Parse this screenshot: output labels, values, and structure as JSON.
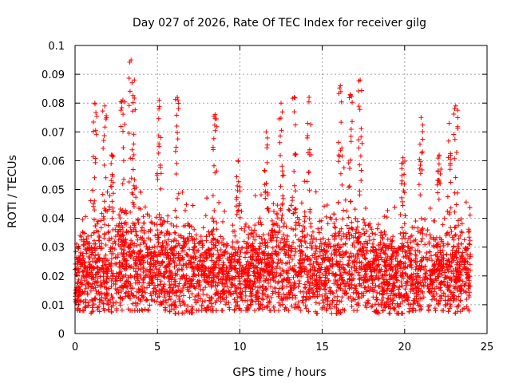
{
  "chart_data": {
    "type": "scatter",
    "title": "Day 027 of 2026, Rate Of TEC Index for receiver gilg",
    "xlabel": "GPS time / hours",
    "ylabel": "ROTI / TECUs",
    "xlim": [
      0,
      25
    ],
    "ylim": [
      0,
      0.1
    ],
    "xticks": [
      0,
      5,
      10,
      15,
      20,
      25
    ],
    "xtick_labels": [
      "0",
      "5",
      "10",
      "15",
      "20",
      "25"
    ],
    "yticks": [
      0,
      0.01,
      0.02,
      0.03,
      0.04,
      0.05,
      0.06,
      0.07,
      0.08,
      0.09,
      0.1
    ],
    "ytick_labels": [
      "0",
      "0.01",
      "0.02",
      "0.03",
      "0.04",
      "0.05",
      "0.06",
      "0.07",
      "0.08",
      "0.09",
      "0.1"
    ],
    "grid": true,
    "marker": "+",
    "color": "#ff0000",
    "envelope": {
      "x_hours": [
        0.0,
        0.5,
        1.0,
        1.5,
        2.0,
        2.5,
        3.0,
        3.5,
        4.0,
        4.5,
        5.0,
        5.5,
        6.0,
        6.5,
        7.0,
        7.5,
        8.0,
        8.5,
        9.0,
        9.5,
        10.0,
        10.5,
        11.0,
        11.5,
        12.0,
        12.5,
        13.0,
        13.5,
        14.0,
        14.5,
        15.0,
        15.5,
        16.0,
        16.5,
        17.0,
        17.5,
        18.0,
        18.5,
        19.0,
        19.5,
        20.0,
        20.5,
        21.0,
        21.5,
        22.0,
        22.5,
        23.0,
        23.5,
        24.0
      ],
      "median": [
        0.019,
        0.02,
        0.021,
        0.022,
        0.022,
        0.023,
        0.023,
        0.024,
        0.023,
        0.023,
        0.022,
        0.023,
        0.022,
        0.022,
        0.021,
        0.021,
        0.021,
        0.021,
        0.02,
        0.02,
        0.02,
        0.021,
        0.021,
        0.022,
        0.023,
        0.023,
        0.022,
        0.022,
        0.022,
        0.021,
        0.021,
        0.021,
        0.022,
        0.022,
        0.023,
        0.022,
        0.021,
        0.021,
        0.02,
        0.02,
        0.02,
        0.02,
        0.021,
        0.021,
        0.021,
        0.021,
        0.022,
        0.021,
        0.021
      ],
      "upper": [
        0.04,
        0.045,
        0.05,
        0.052,
        0.058,
        0.052,
        0.055,
        0.06,
        0.055,
        0.052,
        0.055,
        0.052,
        0.056,
        0.05,
        0.048,
        0.046,
        0.048,
        0.05,
        0.046,
        0.045,
        0.048,
        0.05,
        0.052,
        0.055,
        0.058,
        0.06,
        0.058,
        0.055,
        0.055,
        0.052,
        0.05,
        0.052,
        0.058,
        0.06,
        0.058,
        0.052,
        0.048,
        0.045,
        0.045,
        0.044,
        0.048,
        0.05,
        0.052,
        0.05,
        0.05,
        0.048,
        0.055,
        0.05,
        0.045
      ],
      "lower": [
        0.008,
        0.008,
        0.007,
        0.007,
        0.007,
        0.008,
        0.008,
        0.008,
        0.008,
        0.008,
        0.008,
        0.008,
        0.007,
        0.007,
        0.007,
        0.008,
        0.008,
        0.008,
        0.008,
        0.008,
        0.008,
        0.008,
        0.008,
        0.008,
        0.008,
        0.008,
        0.008,
        0.008,
        0.008,
        0.007,
        0.007,
        0.007,
        0.007,
        0.008,
        0.008,
        0.008,
        0.008,
        0.007,
        0.007,
        0.007,
        0.007,
        0.008,
        0.008,
        0.008,
        0.008,
        0.008,
        0.007,
        0.007,
        0.008
      ]
    },
    "peaks": [
      {
        "x": 1.2,
        "y": 0.08
      },
      {
        "x": 1.8,
        "y": 0.079
      },
      {
        "x": 2.2,
        "y": 0.062
      },
      {
        "x": 2.9,
        "y": 0.081
      },
      {
        "x": 3.4,
        "y": 0.095
      },
      {
        "x": 3.6,
        "y": 0.088
      },
      {
        "x": 5.1,
        "y": 0.081
      },
      {
        "x": 6.2,
        "y": 0.082
      },
      {
        "x": 8.5,
        "y": 0.076
      },
      {
        "x": 9.9,
        "y": 0.06
      },
      {
        "x": 11.6,
        "y": 0.07
      },
      {
        "x": 12.5,
        "y": 0.08
      },
      {
        "x": 13.3,
        "y": 0.082
      },
      {
        "x": 14.2,
        "y": 0.082
      },
      {
        "x": 16.1,
        "y": 0.086
      },
      {
        "x": 16.7,
        "y": 0.083
      },
      {
        "x": 17.3,
        "y": 0.088
      },
      {
        "x": 19.9,
        "y": 0.061
      },
      {
        "x": 21.0,
        "y": 0.075
      },
      {
        "x": 22.1,
        "y": 0.062
      },
      {
        "x": 22.7,
        "y": 0.073
      },
      {
        "x": 23.1,
        "y": 0.079
      }
    ]
  }
}
